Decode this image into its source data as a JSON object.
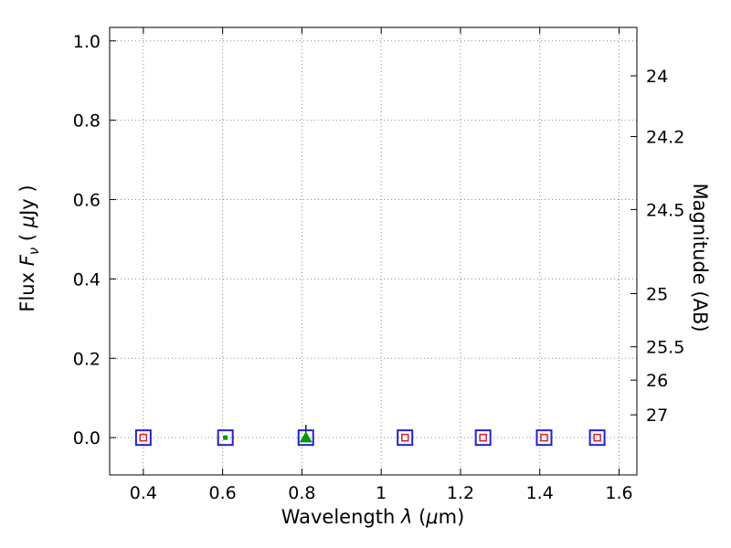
{
  "chart_data": {
    "type": "scatter",
    "title": "",
    "xlabel": "Wavelength λ (μm)",
    "xlabel_parts": {
      "p1": "Wavelength ",
      "lambda": "λ",
      "p2": " (",
      "mu": "μ",
      "p3": "m)"
    },
    "ylabel": "Flux Fν ( μJy )",
    "ylabel_parts": {
      "p1": "Flux ",
      "fvar": "F",
      "nu": "ν",
      "p2": " ( ",
      "mu": "μ",
      "p3": "Jy )"
    },
    "ylabel_right": "Magnitude (AB)",
    "xlim": [
      0.315,
      1.645
    ],
    "ylim": [
      -0.094,
      1.034
    ],
    "grid": true,
    "grid_style": "dotted",
    "legend": "none",
    "xticks": [
      0.4,
      0.6,
      0.8,
      1.0,
      1.2,
      1.4,
      1.6
    ],
    "xtick_labels": [
      "0.4",
      "0.6",
      "0.8",
      "1",
      "1.2",
      "1.4",
      "1.6"
    ],
    "yticks_left": [
      0.0,
      0.2,
      0.4,
      0.6,
      0.8,
      1.0
    ],
    "ytick_left_labels": [
      "0.0",
      "0.2",
      "0.4",
      "0.6",
      "0.8",
      "1.0"
    ],
    "yticks_right": [
      {
        "label": "24",
        "flux": 0.912
      },
      {
        "label": "24.2",
        "flux": 0.759
      },
      {
        "label": "24.5",
        "flux": 0.575
      },
      {
        "label": "25",
        "flux": 0.363
      },
      {
        "label": "25.5",
        "flux": 0.229
      },
      {
        "label": "26",
        "flux": 0.145
      },
      {
        "label": "27",
        "flux": 0.0575
      }
    ],
    "colors": {
      "frame": "#000000",
      "grid": "#8a8a8a",
      "observed_square": "#2222cc",
      "model_red": "#cc2233",
      "green": "#009900",
      "errorbar": "#222222"
    },
    "series": [
      {
        "name": "observed-photometry-squares",
        "marker": "open-square",
        "color": "#2222cc",
        "size": 16,
        "stroke_width": 2,
        "x": [
          0.4,
          0.607,
          0.81,
          1.06,
          1.257,
          1.411,
          1.545
        ],
        "y": [
          0.0,
          0.0,
          0.0,
          0.0,
          0.0,
          0.0,
          0.0
        ]
      },
      {
        "name": "model-photometry-red-squares",
        "marker": "open-square",
        "color": "#cc2233",
        "size": 7,
        "stroke_width": 1.5,
        "x": [
          0.4,
          1.06,
          1.257,
          1.411,
          1.545
        ],
        "y": [
          0.0,
          0.0,
          0.0,
          0.0,
          0.0
        ]
      },
      {
        "name": "model-photometry-green-point",
        "marker": "filled-square",
        "color": "#009900",
        "size": 5,
        "stroke_width": 0,
        "x": [
          0.607
        ],
        "y": [
          0.0
        ]
      },
      {
        "name": "error-bar",
        "marker": "vline",
        "color": "#222222",
        "size": 14,
        "stroke_width": 1.5,
        "x": [
          0.81
        ],
        "y": [
          0.0
        ]
      },
      {
        "name": "upper-limit-triangle",
        "marker": "triangle-up",
        "color": "#009900",
        "size": 14,
        "stroke_width": 0,
        "x": [
          0.81
        ],
        "y": [
          0.0
        ]
      }
    ]
  }
}
